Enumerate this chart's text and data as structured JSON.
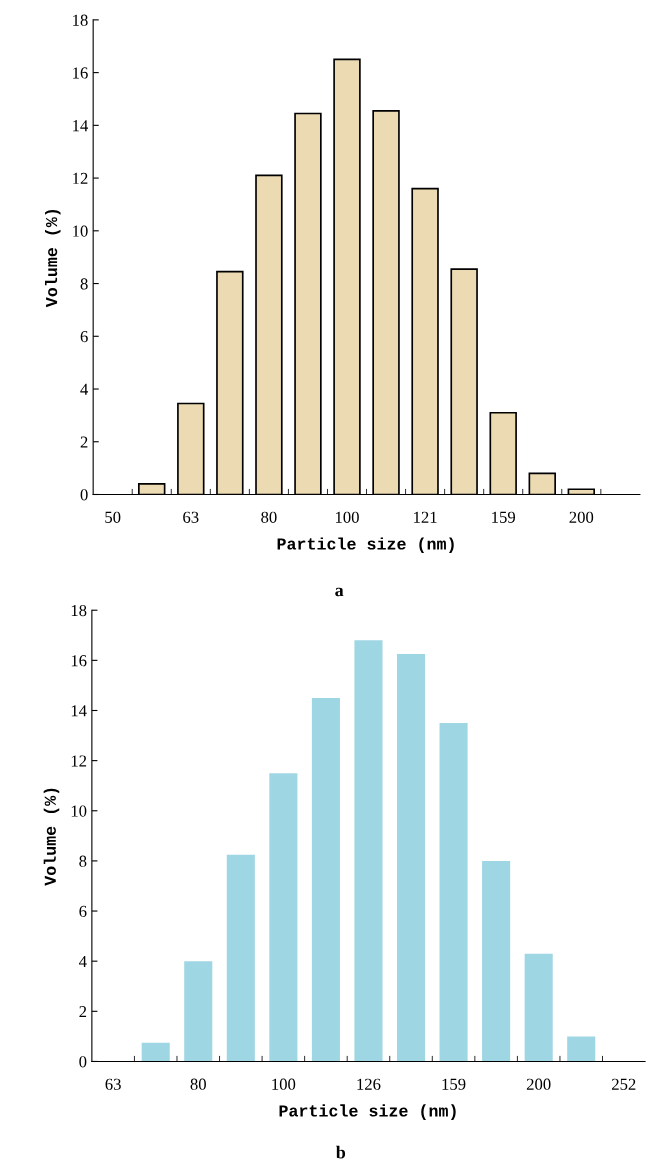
{
  "chart_data": [
    {
      "type": "bar",
      "xlabel": "Particle size (nm)",
      "ylabel": "Volume (%)",
      "annotations": [
        "a"
      ],
      "categories": [
        "50",
        null,
        "63",
        null,
        "80",
        null,
        "100",
        null,
        "121",
        null,
        "159",
        null,
        "200",
        null
      ],
      "values": [
        null,
        0.4,
        3.45,
        8.45,
        12.1,
        14.45,
        16.5,
        14.55,
        11.6,
        8.55,
        3.1,
        0.8,
        0.2,
        null
      ],
      "color": "#ecdab2",
      "ylim": [
        0,
        18
      ],
      "yticks": [
        0,
        2,
        4,
        6,
        8,
        10,
        12,
        14,
        16,
        18
      ],
      "grid": false
    },
    {
      "type": "bar",
      "xlabel": "Particle size (nm)",
      "ylabel": "Volume (%)",
      "annotations": [
        "b"
      ],
      "categories": [
        "63",
        null,
        "80",
        null,
        "100",
        null,
        "126",
        null,
        "159",
        null,
        "200",
        null,
        "252"
      ],
      "values": [
        null,
        0.75,
        4.0,
        8.25,
        11.5,
        14.5,
        16.8,
        16.25,
        13.5,
        8.0,
        4.3,
        1.0,
        null
      ],
      "color": "#9fd6e4",
      "ylim": [
        0,
        18
      ],
      "yticks": [
        0,
        2,
        4,
        6,
        8,
        10,
        12,
        14,
        16,
        18
      ],
      "grid": false
    }
  ]
}
